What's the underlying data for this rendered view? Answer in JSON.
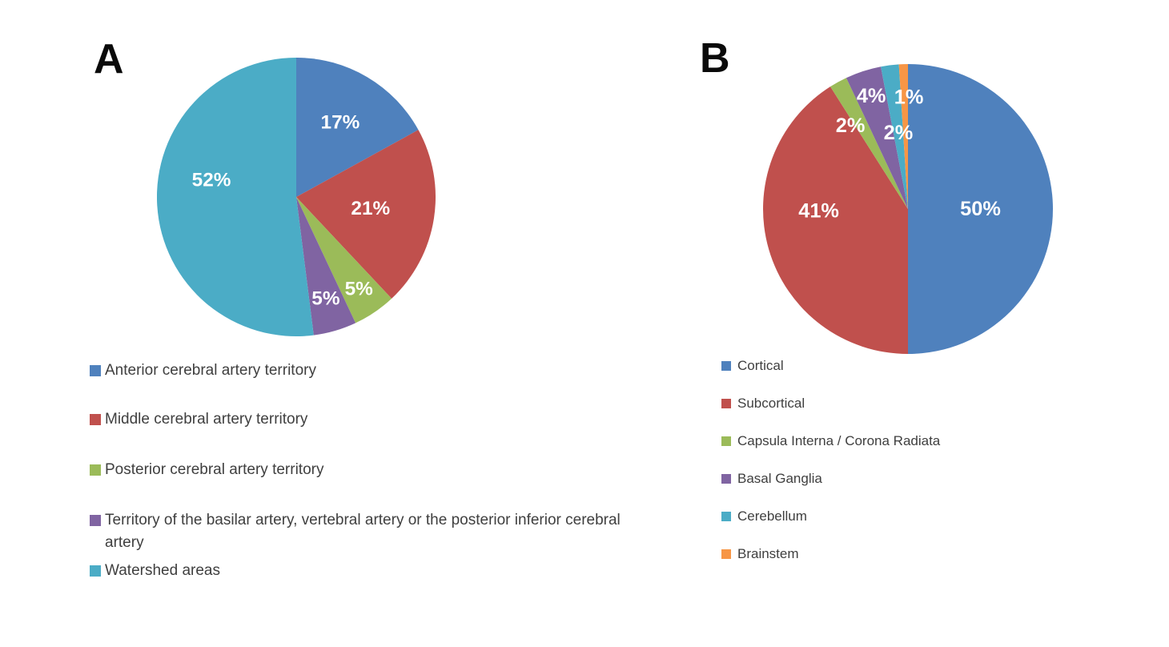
{
  "panels": [
    {
      "label": "A"
    },
    {
      "label": "B"
    }
  ],
  "styles": {
    "background": "#ffffff",
    "percent_label_color": "#ffffff",
    "legend_text_color": "#3f3f3f",
    "panel_label_color": "#0a0a0a"
  },
  "chart_data": [
    {
      "type": "pie",
      "panel": "A",
      "title": "",
      "labels": [
        "Anterior cerebral artery territory",
        "Middle cerebral artery territory",
        "Posterior cerebral artery territory",
        "Territory of the basilar artery, vertebral artery or the posterior inferior cerebral artery",
        "Watershed areas"
      ],
      "values": [
        17,
        21,
        5,
        5,
        52
      ],
      "data_labels": [
        "17%",
        "21%",
        "5%",
        "5%",
        "52%"
      ],
      "colors": [
        "#4F81BD",
        "#C0504D",
        "#9BBB59",
        "#8064A2",
        "#4BACC6"
      ],
      "start_angle": "12-o-clock",
      "direction": "clockwise",
      "legend_position": "below-left",
      "layout": {
        "label_rf": [
          0.62,
          0.54,
          0.8,
          0.76,
          0.61
        ],
        "label_dx": [
          0,
          0,
          0,
          0,
          0
        ],
        "label_dy": [
          0,
          0,
          0,
          0,
          -16
        ],
        "legend_row_tops": [
          0,
          61,
          124,
          187,
          250
        ]
      }
    },
    {
      "type": "pie",
      "panel": "B",
      "title": "",
      "labels": [
        "Cortical",
        "Subcortical",
        "Capsula Interna / Corona Radiata",
        "Basal Ganglia",
        "Cerebellum",
        "Brainstem"
      ],
      "values": [
        50,
        41,
        2,
        4,
        2,
        1
      ],
      "data_labels": [
        "50%",
        "41%",
        "2%",
        "4%",
        "2%",
        "1%"
      ],
      "colors": [
        "#4F81BD",
        "#C0504D",
        "#9BBB59",
        "#8064A2",
        "#4BACC6",
        "#F79646"
      ],
      "start_angle": "12-o-clock",
      "direction": "clockwise",
      "legend_position": "below-left",
      "layout": {
        "label_rf": [
          0.5,
          0.62,
          0.7,
          0.82,
          0.53,
          0.77
        ],
        "label_dx": [
          0,
          -2,
          -6,
          0,
          0,
          3
        ],
        "label_dy": [
          0,
          -16,
          4,
          0,
          0,
          0
        ],
        "legend_row_tops": [
          0,
          47,
          94,
          141,
          188,
          235
        ]
      }
    }
  ]
}
